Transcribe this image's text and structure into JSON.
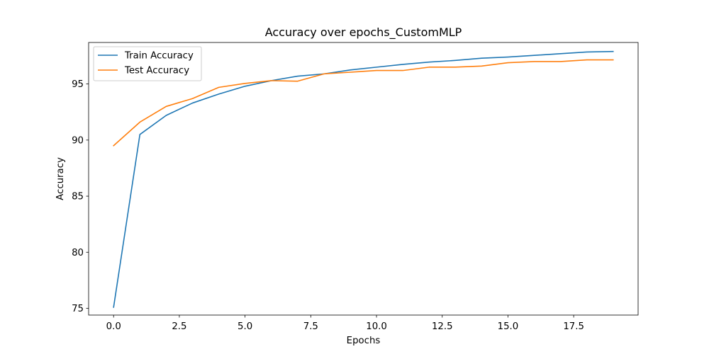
{
  "chart_data": {
    "type": "line",
    "title": "Accuracy over epochs_CustomMLP",
    "xlabel": "Epochs",
    "ylabel": "Accuracy",
    "xlim": [
      -0.95,
      19.95
    ],
    "ylim": [
      74.4,
      98.7
    ],
    "xticks": [
      0,
      2.5,
      5,
      7.5,
      10,
      12.5,
      15,
      17.5
    ],
    "xtick_labels": [
      "0.0",
      "2.5",
      "5.0",
      "7.5",
      "10.0",
      "12.5",
      "15.0",
      "17.5"
    ],
    "yticks": [
      75,
      80,
      85,
      90,
      95
    ],
    "ytick_labels": [
      "75",
      "80",
      "85",
      "90",
      "95"
    ],
    "grid": false,
    "legend_position": "top-left",
    "x": [
      0,
      1,
      2,
      3,
      4,
      5,
      6,
      7,
      8,
      9,
      10,
      11,
      12,
      13,
      14,
      15,
      16,
      17,
      18,
      19
    ],
    "series": [
      {
        "name": "Train Accuracy",
        "color": "#1f77b4",
        "values": [
          75.1,
          90.5,
          92.2,
          93.3,
          94.1,
          94.8,
          95.3,
          95.7,
          95.9,
          96.25,
          96.5,
          96.75,
          96.95,
          97.1,
          97.3,
          97.4,
          97.55,
          97.7,
          97.85,
          97.9
        ]
      },
      {
        "name": "Test Accuracy",
        "color": "#ff7f0e",
        "values": [
          89.5,
          91.6,
          93.0,
          93.7,
          94.7,
          95.05,
          95.3,
          95.25,
          95.9,
          96.05,
          96.2,
          96.2,
          96.5,
          96.5,
          96.6,
          96.9,
          97.0,
          97.0,
          97.15,
          97.15
        ]
      }
    ]
  }
}
